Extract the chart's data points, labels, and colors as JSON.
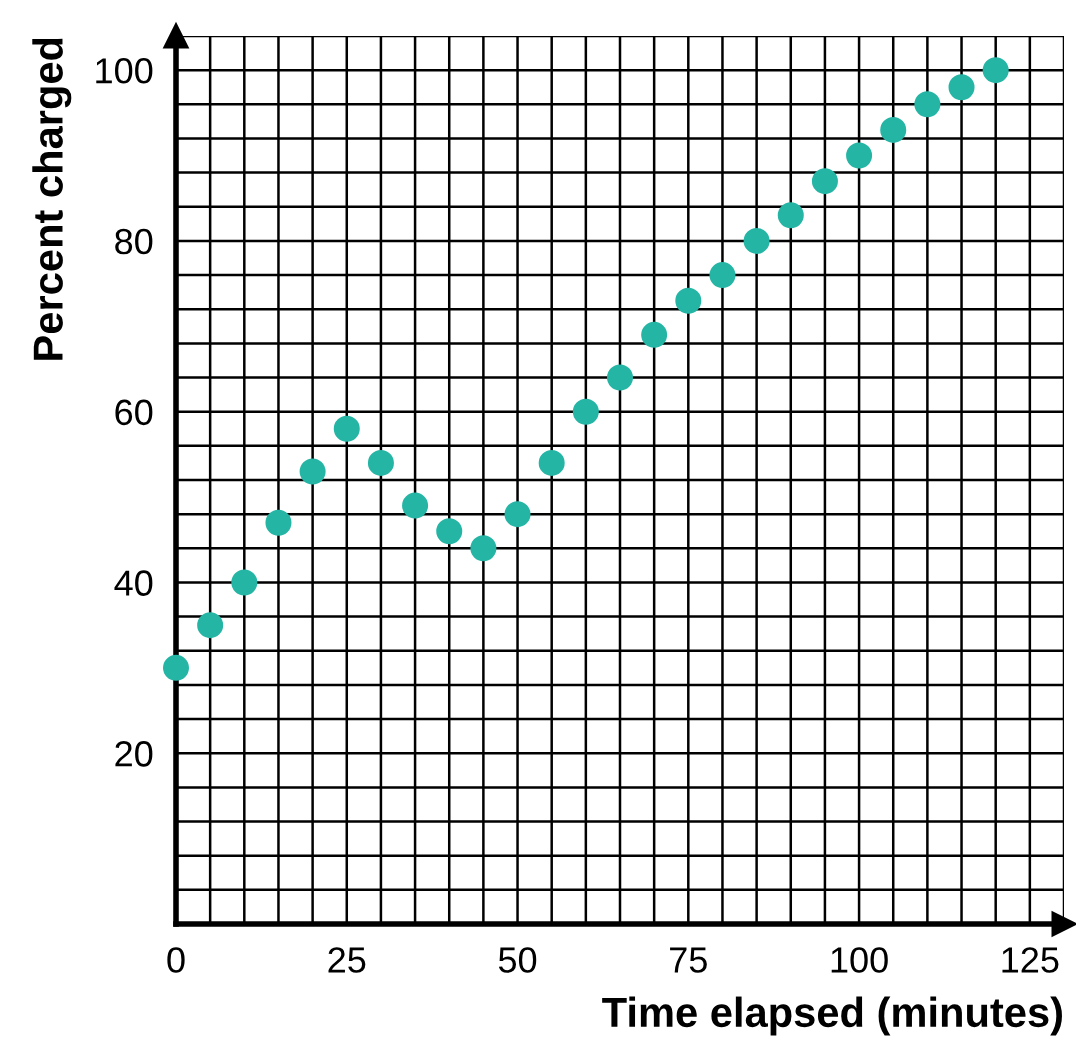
{
  "chart_data": {
    "type": "scatter",
    "xlabel": "Time elapsed (minutes)",
    "ylabel": "Percent charged",
    "x": [
      0,
      5,
      10,
      15,
      20,
      25,
      30,
      35,
      40,
      45,
      50,
      55,
      60,
      65,
      70,
      75,
      80,
      85,
      90,
      95,
      100,
      105,
      110,
      115,
      120
    ],
    "values": [
      30,
      35,
      40,
      47,
      53,
      58,
      54,
      49,
      46,
      44,
      48,
      54,
      60,
      64,
      69,
      73,
      76,
      80,
      83,
      87,
      90,
      93,
      96,
      98,
      100
    ],
    "color": "#25b5a5",
    "marker": "circle",
    "grid": true,
    "xlim": [
      0,
      130
    ],
    "ylim": [
      0,
      104
    ],
    "xticks": [
      0,
      {
        "value": 5,
        "label": null
      },
      {
        "value": 10,
        "label": null
      },
      {
        "value": 15,
        "label": null
      },
      {
        "value": 20,
        "label": null
      },
      25,
      {
        "value": 30,
        "label": null
      },
      {
        "value": 35,
        "label": null
      },
      {
        "value": 40,
        "label": null
      },
      {
        "value": 45,
        "label": null
      },
      50,
      {
        "value": 55,
        "label": null
      },
      {
        "value": 60,
        "label": null
      },
      {
        "value": 65,
        "label": null
      },
      {
        "value": 70,
        "label": null
      },
      75,
      {
        "value": 80,
        "label": null
      },
      {
        "value": 85,
        "label": null
      },
      {
        "value": 90,
        "label": null
      },
      {
        "value": 95,
        "label": null
      },
      100,
      {
        "value": 105,
        "label": null
      },
      {
        "value": 110,
        "label": null
      },
      {
        "value": 115,
        "label": null
      },
      {
        "value": 120,
        "label": null
      },
      125,
      {
        "value": 130,
        "label": null
      }
    ],
    "yticks": [
      {
        "value": 4,
        "label": null
      },
      {
        "value": 8,
        "label": null
      },
      {
        "value": 12,
        "label": null
      },
      {
        "value": 16,
        "label": null
      },
      20,
      {
        "value": 24,
        "label": null
      },
      {
        "value": 28,
        "label": null
      },
      {
        "value": 32,
        "label": null
      },
      {
        "value": 36,
        "label": null
      },
      40,
      {
        "value": 44,
        "label": null
      },
      {
        "value": 48,
        "label": null
      },
      {
        "value": 52,
        "label": null
      },
      {
        "value": 56,
        "label": null
      },
      60,
      {
        "value": 64,
        "label": null
      },
      {
        "value": 68,
        "label": null
      },
      {
        "value": 72,
        "label": null
      },
      {
        "value": 76,
        "label": null
      },
      80,
      {
        "value": 84,
        "label": null
      },
      {
        "value": 88,
        "label": null
      },
      {
        "value": 92,
        "label": null
      },
      {
        "value": 96,
        "label": null
      },
      100,
      {
        "value": 104,
        "label": null
      }
    ]
  }
}
